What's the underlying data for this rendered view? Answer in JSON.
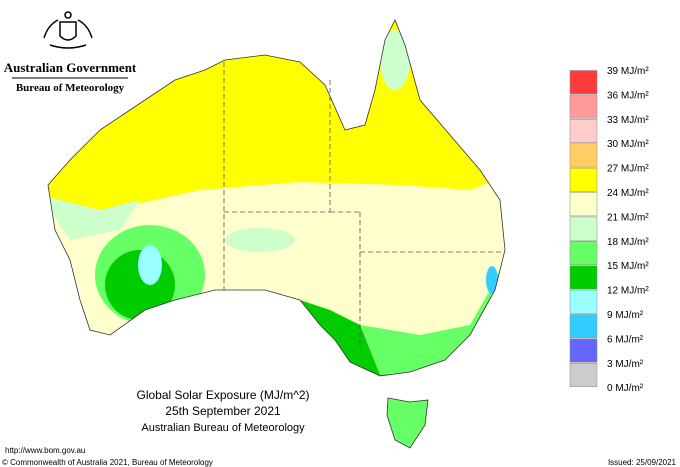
{
  "header": {
    "government": "Australian Government",
    "bureau": "Bureau of Meteorology"
  },
  "legend": [
    {
      "label": "39 MJ/m²",
      "color": "#ff3b3b"
    },
    {
      "label": "36 MJ/m²",
      "color": "#ff9a9a"
    },
    {
      "label": "33 MJ/m²",
      "color": "#ffcccc"
    },
    {
      "label": "30 MJ/m²",
      "color": "#ffcc66"
    },
    {
      "label": "27 MJ/m²",
      "color": "#ffff00"
    },
    {
      "label": "24 MJ/m²",
      "color": "#ffffcc"
    },
    {
      "label": "21 MJ/m²",
      "color": "#ccffcc"
    },
    {
      "label": "18 MJ/m²",
      "color": "#66ff66"
    },
    {
      "label": "15 MJ/m²",
      "color": "#00cc00"
    },
    {
      "label": "12 MJ/m²",
      "color": "#99ffff"
    },
    {
      "label": "9 MJ/m²",
      "color": "#33ccff"
    },
    {
      "label": "6 MJ/m²",
      "color": "#6666ff"
    },
    {
      "label": "3 MJ/m²",
      "color": "#cccccc"
    },
    {
      "label": "0 MJ/m²",
      "color": null
    }
  ],
  "caption": {
    "title": "Global Solar Exposure (MJ/m^2)",
    "date": "25th September 2021",
    "source": "Australian Bureau of Meteorology"
  },
  "footer": {
    "url": "http://www.bom.gov.au",
    "copyright": "© Commonwealth of Australia 2021, Bureau of Meteorology",
    "issued": "Issued: 25/09/2021"
  }
}
